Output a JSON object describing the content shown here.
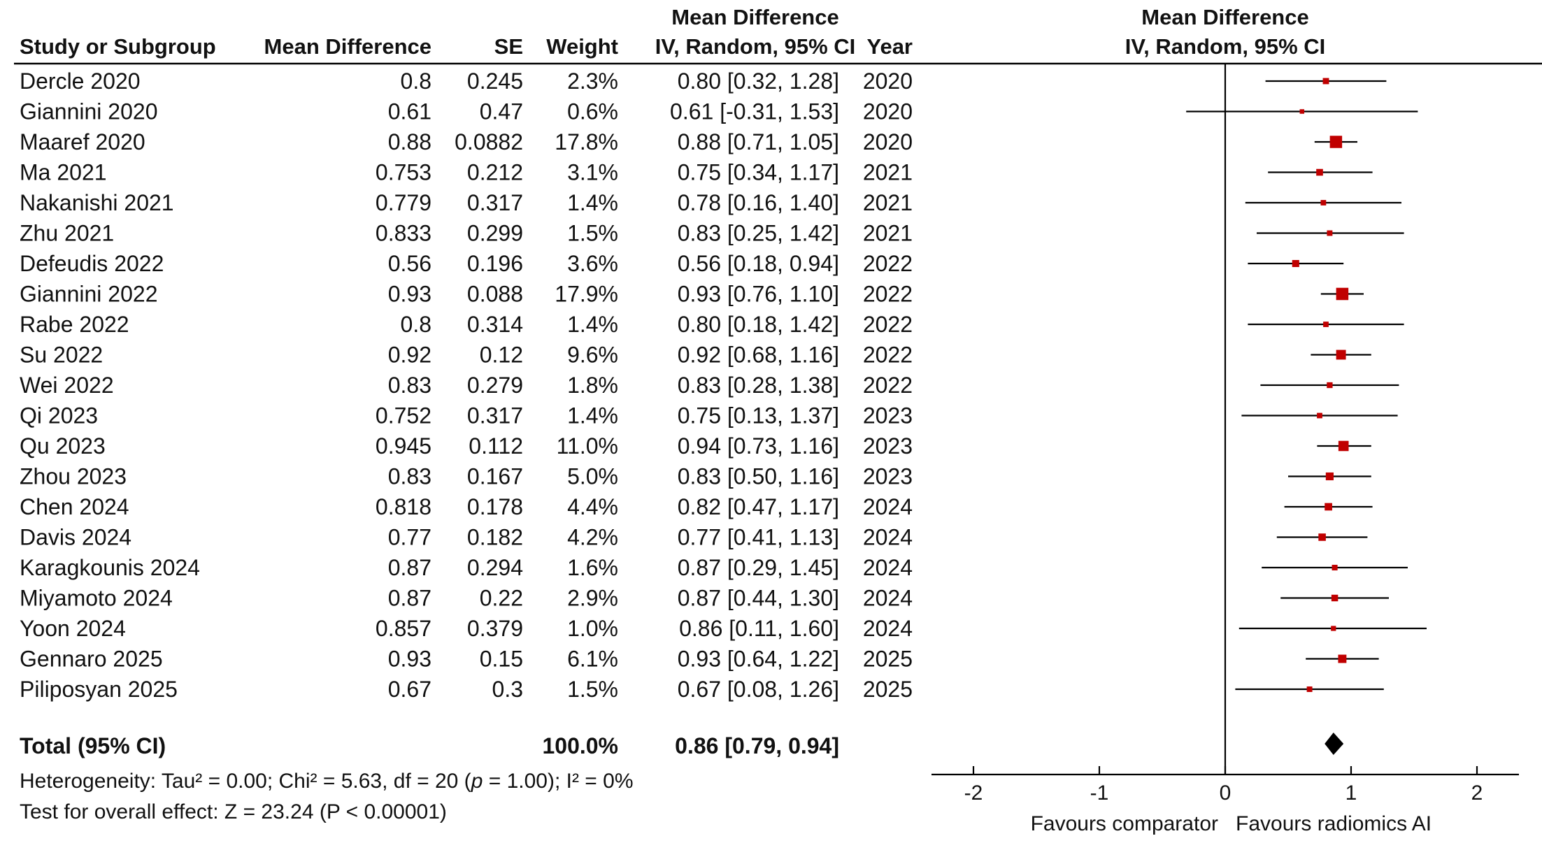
{
  "header": {
    "study": "Study or Subgroup",
    "mean_difference": "Mean Difference",
    "se": "SE",
    "weight": "Weight",
    "ci_group_line1": "Mean Difference",
    "ci_group_line2": "IV, Random, 95% CI",
    "year": "Year",
    "plot_line1": "Mean Difference",
    "plot_line2": "IV, Random, 95% CI"
  },
  "chart_data": {
    "type": "scatter",
    "subtype": "forest-plot",
    "xlim": [
      -2,
      2
    ],
    "x_ticks": [
      -2,
      -1,
      0,
      1,
      2
    ],
    "x_tick_labels": [
      "-2",
      "-1",
      "0",
      "1",
      "2"
    ],
    "xlabel_left": "Favours comparator",
    "xlabel_right": "Favours radiomics AI",
    "point_color": "#c00000",
    "line_color": "#000000",
    "studies": [
      {
        "study": "Dercle 2020",
        "md": "0.8",
        "se": "0.245",
        "weight": "2.3%",
        "ci": "0.80 [0.32, 1.28]",
        "year": "2020",
        "est": 0.8,
        "lo": 0.32,
        "hi": 1.28,
        "w": 2.3
      },
      {
        "study": "Giannini 2020",
        "md": "0.61",
        "se": "0.47",
        "weight": "0.6%",
        "ci": "0.61 [-0.31, 1.53]",
        "year": "2020",
        "est": 0.61,
        "lo": -0.31,
        "hi": 1.53,
        "w": 0.6
      },
      {
        "study": "Maaref 2020",
        "md": "0.88",
        "se": "0.0882",
        "weight": "17.8%",
        "ci": "0.88 [0.71, 1.05]",
        "year": "2020",
        "est": 0.88,
        "lo": 0.71,
        "hi": 1.05,
        "w": 17.8
      },
      {
        "study": "Ma 2021",
        "md": "0.753",
        "se": "0.212",
        "weight": "3.1%",
        "ci": "0.75 [0.34, 1.17]",
        "year": "2021",
        "est": 0.75,
        "lo": 0.34,
        "hi": 1.17,
        "w": 3.1
      },
      {
        "study": "Nakanishi 2021",
        "md": "0.779",
        "se": "0.317",
        "weight": "1.4%",
        "ci": "0.78 [0.16, 1.40]",
        "year": "2021",
        "est": 0.78,
        "lo": 0.16,
        "hi": 1.4,
        "w": 1.4
      },
      {
        "study": "Zhu 2021",
        "md": "0.833",
        "se": "0.299",
        "weight": "1.5%",
        "ci": "0.83 [0.25, 1.42]",
        "year": "2021",
        "est": 0.83,
        "lo": 0.25,
        "hi": 1.42,
        "w": 1.5
      },
      {
        "study": "Defeudis 2022",
        "md": "0.56",
        "se": "0.196",
        "weight": "3.6%",
        "ci": "0.56 [0.18, 0.94]",
        "year": "2022",
        "est": 0.56,
        "lo": 0.18,
        "hi": 0.94,
        "w": 3.6
      },
      {
        "study": "Giannini 2022",
        "md": "0.93",
        "se": "0.088",
        "weight": "17.9%",
        "ci": "0.93 [0.76, 1.10]",
        "year": "2022",
        "est": 0.93,
        "lo": 0.76,
        "hi": 1.1,
        "w": 17.9
      },
      {
        "study": "Rabe 2022",
        "md": "0.8",
        "se": "0.314",
        "weight": "1.4%",
        "ci": "0.80 [0.18, 1.42]",
        "year": "2022",
        "est": 0.8,
        "lo": 0.18,
        "hi": 1.42,
        "w": 1.4
      },
      {
        "study": "Su 2022",
        "md": "0.92",
        "se": "0.12",
        "weight": "9.6%",
        "ci": "0.92 [0.68, 1.16]",
        "year": "2022",
        "est": 0.92,
        "lo": 0.68,
        "hi": 1.16,
        "w": 9.6
      },
      {
        "study": "Wei 2022",
        "md": "0.83",
        "se": "0.279",
        "weight": "1.8%",
        "ci": "0.83 [0.28, 1.38]",
        "year": "2022",
        "est": 0.83,
        "lo": 0.28,
        "hi": 1.38,
        "w": 1.8
      },
      {
        "study": "Qi 2023",
        "md": "0.752",
        "se": "0.317",
        "weight": "1.4%",
        "ci": "0.75 [0.13, 1.37]",
        "year": "2023",
        "est": 0.75,
        "lo": 0.13,
        "hi": 1.37,
        "w": 1.4
      },
      {
        "study": "Qu 2023",
        "md": "0.945",
        "se": "0.112",
        "weight": "11.0%",
        "ci": "0.94 [0.73, 1.16]",
        "year": "2023",
        "est": 0.94,
        "lo": 0.73,
        "hi": 1.16,
        "w": 11.0
      },
      {
        "study": "Zhou 2023",
        "md": "0.83",
        "se": "0.167",
        "weight": "5.0%",
        "ci": "0.83 [0.50, 1.16]",
        "year": "2023",
        "est": 0.83,
        "lo": 0.5,
        "hi": 1.16,
        "w": 5.0
      },
      {
        "study": "Chen 2024",
        "md": "0.818",
        "se": "0.178",
        "weight": "4.4%",
        "ci": "0.82 [0.47, 1.17]",
        "year": "2024",
        "est": 0.82,
        "lo": 0.47,
        "hi": 1.17,
        "w": 4.4
      },
      {
        "study": "Davis 2024",
        "md": "0.77",
        "se": "0.182",
        "weight": "4.2%",
        "ci": "0.77 [0.41, 1.13]",
        "year": "2024",
        "est": 0.77,
        "lo": 0.41,
        "hi": 1.13,
        "w": 4.2
      },
      {
        "study": "Karagkounis 2024",
        "md": "0.87",
        "se": "0.294",
        "weight": "1.6%",
        "ci": "0.87 [0.29, 1.45]",
        "year": "2024",
        "est": 0.87,
        "lo": 0.29,
        "hi": 1.45,
        "w": 1.6
      },
      {
        "study": "Miyamoto 2024",
        "md": "0.87",
        "se": "0.22",
        "weight": "2.9%",
        "ci": "0.87 [0.44, 1.30]",
        "year": "2024",
        "est": 0.87,
        "lo": 0.44,
        "hi": 1.3,
        "w": 2.9
      },
      {
        "study": "Yoon 2024",
        "md": "0.857",
        "se": "0.379",
        "weight": "1.0%",
        "ci": "0.86 [0.11, 1.60]",
        "year": "2024",
        "est": 0.86,
        "lo": 0.11,
        "hi": 1.6,
        "w": 1.0
      },
      {
        "study": "Gennaro 2025",
        "md": "0.93",
        "se": "0.15",
        "weight": "6.1%",
        "ci": "0.93 [0.64, 1.22]",
        "year": "2025",
        "est": 0.93,
        "lo": 0.64,
        "hi": 1.22,
        "w": 6.1
      },
      {
        "study": "Piliposyan 2025",
        "md": "0.67",
        "se": "0.3",
        "weight": "1.5%",
        "ci": "0.67 [0.08, 1.26]",
        "year": "2025",
        "est": 0.67,
        "lo": 0.08,
        "hi": 1.26,
        "w": 1.5
      }
    ],
    "total": {
      "label": "Total (95% CI)",
      "weight": "100.0%",
      "ci": "0.86 [0.79, 0.94]",
      "est": 0.86,
      "lo": 0.79,
      "hi": 0.94
    }
  },
  "footer": {
    "heterogeneity_prefix": "Heterogeneity: Tau² = 0.00; Chi² = 5.63, df = 20 (",
    "heterogeneity_p": "p",
    "heterogeneity_suffix": " = 1.00); I² = 0%",
    "overall_effect": "Test for overall effect: Z = 23.24 (P < 0.00001)"
  }
}
